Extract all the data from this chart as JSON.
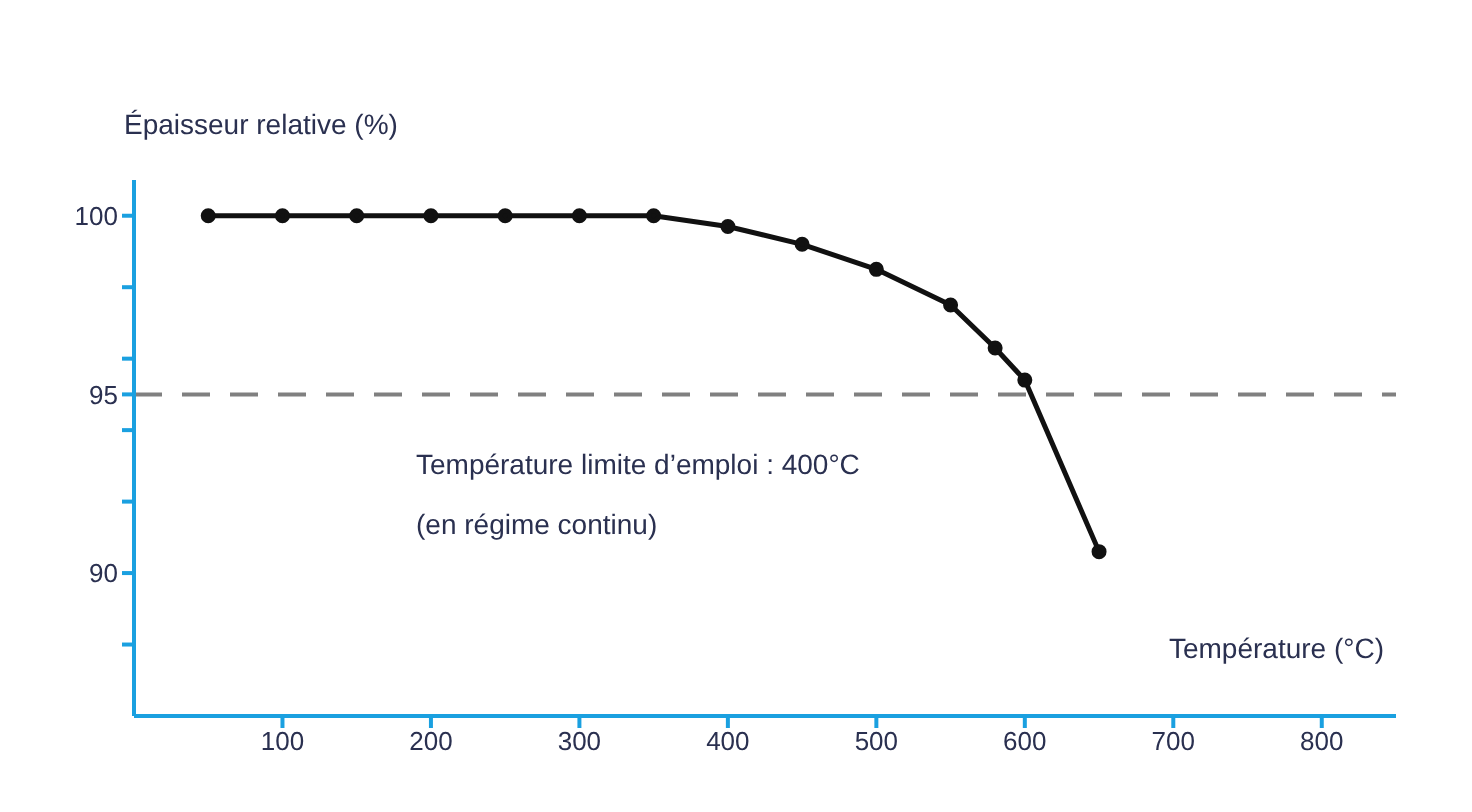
{
  "chart_data": {
    "type": "line",
    "xlabel": "Température (°C)",
    "ylabel": "Épaisseur relative (%)",
    "x": [
      50,
      100,
      150,
      200,
      250,
      300,
      350,
      400,
      450,
      500,
      550,
      580,
      600,
      650
    ],
    "series": [
      {
        "color": "#111111",
        "values": [
          100,
          100,
          100,
          100,
          100,
          100,
          100,
          99.7,
          99.2,
          98.5,
          97.5,
          96.3,
          95.4,
          90.6
        ]
      }
    ],
    "xlim": [
      0,
      850
    ],
    "xticks": [
      100,
      200,
      300,
      400,
      500,
      600,
      700,
      800
    ],
    "ylim": [
      86,
      101
    ],
    "yticks": [
      {
        "value": 88,
        "label": null
      },
      90,
      {
        "value": 92,
        "label": null
      },
      {
        "value": 94,
        "label": null
      },
      95,
      {
        "value": 96,
        "label": null
      },
      {
        "value": 98,
        "label": null
      },
      100
    ],
    "ref_lines": [
      {
        "axis": "y",
        "value": 95,
        "color": "#808080",
        "line_style": "dashed"
      }
    ],
    "annotations": [
      "Température limite d’emploi : 400°C",
      "(en régime continu)"
    ],
    "marker": "circle",
    "line_style": "solid",
    "grid": false,
    "legend": false
  }
}
